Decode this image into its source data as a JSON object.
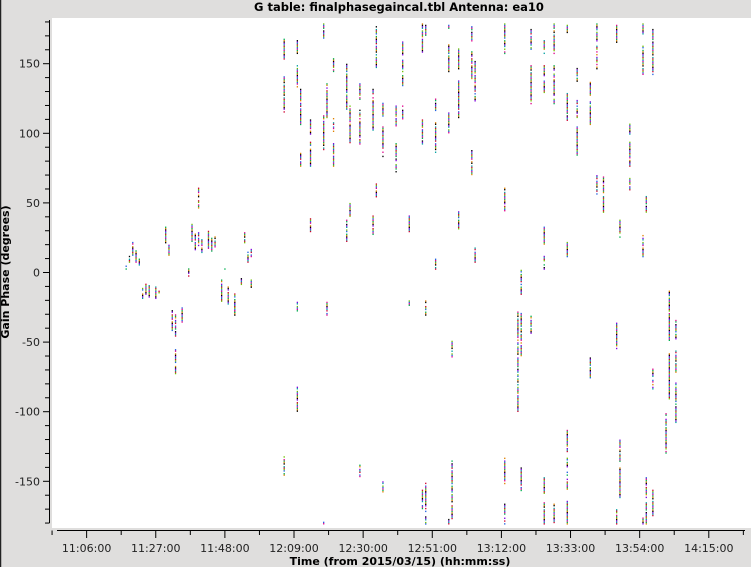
{
  "chart_data": {
    "type": "scatter",
    "title": "G table: finalphasegaincal.tbl   Antenna: ea10",
    "xlabel": "Time (from 2015/03/15) (hh:mm:ss)",
    "ylabel": "Gain Phase (degrees)",
    "xlim": [
      "10:57",
      "14:26"
    ],
    "ylim": [
      -181,
      181
    ],
    "x_ticks": [
      "11:06:00",
      "11:27:00",
      "11:48:00",
      "12:09:00",
      "12:30:00",
      "12:51:00",
      "13:12:00",
      "13:33:00",
      "13:54:00",
      "14:15:00"
    ],
    "y_ticks": [
      150,
      100,
      50,
      0,
      -50,
      -100,
      -150
    ],
    "grid": false,
    "point_colors": [
      "#2060e0",
      "#e0008c",
      "#00b050",
      "#e08000",
      "#000000",
      "#8000e0",
      "#00a0a0",
      "#d00030",
      "#70c000"
    ],
    "segments_note_format": [
      "time",
      "phase_top",
      "phase_bottom"
    ],
    "segments": [
      [
        "11:18",
        5,
        3
      ],
      [
        "11:19",
        13,
        8
      ],
      [
        "11:20",
        22,
        12
      ],
      [
        "11:21",
        16,
        8
      ],
      [
        "11:22",
        10,
        5
      ],
      [
        "11:23",
        -11,
        -18
      ],
      [
        "11:24",
        -8,
        -15
      ],
      [
        "11:25",
        -9,
        -17
      ],
      [
        "11:27",
        -10,
        -18
      ],
      [
        "11:28",
        -12,
        -16
      ],
      [
        "11:30",
        33,
        22
      ],
      [
        "11:31",
        20,
        13
      ],
      [
        "11:32",
        -27,
        -41
      ],
      [
        "11:33",
        -30,
        -45
      ],
      [
        "11:33",
        -54,
        -72
      ],
      [
        "11:35",
        -25,
        -35
      ],
      [
        "11:37",
        3,
        -2
      ],
      [
        "11:38",
        35,
        23
      ],
      [
        "11:39",
        28,
        16
      ],
      [
        "11:40",
        61,
        47
      ],
      [
        "11:40",
        30,
        20
      ],
      [
        "11:41",
        24,
        15
      ],
      [
        "11:43",
        30,
        18
      ],
      [
        "11:44",
        25,
        16
      ],
      [
        "11:45",
        26,
        19
      ],
      [
        "11:47",
        -5,
        -20
      ],
      [
        "11:48",
        5,
        3
      ],
      [
        "11:49",
        -10,
        -22
      ],
      [
        "11:51",
        -15,
        -30
      ],
      [
        "11:51",
        -22,
        -28
      ],
      [
        "11:53",
        -3,
        -8
      ],
      [
        "11:54",
        30,
        22
      ],
      [
        "11:55",
        15,
        8
      ],
      [
        "11:56",
        -5,
        -10
      ],
      [
        "11:56",
        17,
        12
      ],
      [
        "12:06",
        168,
        154
      ],
      [
        "12:06",
        142,
        116
      ],
      [
        "12:06",
        -132,
        -145
      ],
      [
        "12:10",
        167,
        158
      ],
      [
        "12:10",
        150,
        133
      ],
      [
        "12:10",
        -82,
        -99
      ],
      [
        "12:10",
        -21,
        -28
      ],
      [
        "12:11",
        132,
        107
      ],
      [
        "12:11",
        86,
        77
      ],
      [
        "12:14",
        110,
        99
      ],
      [
        "12:14",
        94,
        77
      ],
      [
        "12:14",
        39,
        30
      ],
      [
        "12:18",
        179,
        169
      ],
      [
        "12:18",
        113,
        88
      ],
      [
        "12:18",
        -179,
        -180
      ],
      [
        "12:19",
        136,
        111
      ],
      [
        "12:19",
        -21,
        -30
      ],
      [
        "12:21",
        154,
        145
      ],
      [
        "12:21",
        111,
        102
      ],
      [
        "12:21",
        94,
        77
      ],
      [
        "12:25",
        150,
        118
      ],
      [
        "12:25",
        38,
        23
      ],
      [
        "12:26",
        120,
        94
      ],
      [
        "12:26",
        50,
        41
      ],
      [
        "12:29",
        136,
        124
      ],
      [
        "12:29",
        117,
        93
      ],
      [
        "12:29",
        -138,
        -148
      ],
      [
        "12:33",
        132,
        103
      ],
      [
        "12:33",
        41,
        28
      ],
      [
        "12:34",
        178,
        148
      ],
      [
        "12:34",
        64,
        55
      ],
      [
        "12:36",
        123,
        113
      ],
      [
        "12:36",
        105,
        84
      ],
      [
        "12:36",
        -150,
        -158
      ],
      [
        "12:40",
        120,
        106
      ],
      [
        "12:40",
        93,
        73
      ],
      [
        "12:42",
        166,
        135
      ],
      [
        "12:42",
        120,
        111
      ],
      [
        "12:44",
        44,
        30
      ],
      [
        "12:44",
        -20,
        -23
      ],
      [
        "12:48",
        179,
        159
      ],
      [
        "12:48",
        111,
        93
      ],
      [
        "12:48",
        -156,
        -169
      ],
      [
        "12:49",
        179,
        171
      ],
      [
        "12:49",
        -20,
        -32
      ],
      [
        "12:49",
        -151,
        -180
      ],
      [
        "12:52",
        125,
        115
      ],
      [
        "12:52",
        108,
        87
      ],
      [
        "12:52",
        12,
        3
      ],
      [
        "12:56",
        179,
        176
      ],
      [
        "12:56",
        164,
        145
      ],
      [
        "12:56",
        115,
        100
      ],
      [
        "12:56",
        -176,
        -180
      ],
      [
        "12:57",
        -49,
        -60
      ],
      [
        "12:57",
        -135,
        -176
      ],
      [
        "12:59",
        161,
        147
      ],
      [
        "12:59",
        138,
        112
      ],
      [
        "12:59",
        44,
        32
      ],
      [
        "13:03",
        177,
        167
      ],
      [
        "13:03",
        159,
        140
      ],
      [
        "13:03",
        88,
        71
      ],
      [
        "13:04",
        152,
        124
      ],
      [
        "13:04",
        18,
        8
      ],
      [
        "13:13",
        179,
        158
      ],
      [
        "13:13",
        61,
        44
      ],
      [
        "13:13",
        -133,
        -151
      ],
      [
        "13:13",
        -166,
        -180
      ],
      [
        "13:17",
        -28,
        -58
      ],
      [
        "13:17",
        -61,
        -99
      ],
      [
        "13:18",
        2,
        -15
      ],
      [
        "13:18",
        -28,
        -59
      ],
      [
        "13:18",
        -140,
        -156
      ],
      [
        "13:21",
        176,
        161
      ],
      [
        "13:21",
        149,
        122
      ],
      [
        "13:21",
        -31,
        -43
      ],
      [
        "13:25",
        167,
        158
      ],
      [
        "13:25",
        149,
        130
      ],
      [
        "13:25",
        33,
        21
      ],
      [
        "13:25",
        13,
        3
      ],
      [
        "13:25",
        -147,
        -158
      ],
      [
        "13:25",
        -164,
        -180
      ],
      [
        "13:28",
        179,
        176
      ],
      [
        "13:28",
        174,
        158
      ],
      [
        "13:28",
        149,
        122
      ],
      [
        "13:28",
        -166,
        -179
      ],
      [
        "13:32",
        178,
        173
      ],
      [
        "13:32",
        130,
        110
      ],
      [
        "13:32",
        22,
        12
      ],
      [
        "13:32",
        -113,
        -128
      ],
      [
        "13:32",
        -133,
        -156
      ],
      [
        "13:32",
        -164,
        -180
      ],
      [
        "13:35",
        147,
        138
      ],
      [
        "13:35",
        124,
        112
      ],
      [
        "13:35",
        105,
        85
      ],
      [
        "13:39",
        137,
        127
      ],
      [
        "13:39",
        123,
        107
      ],
      [
        "13:39",
        -61,
        -76
      ],
      [
        "13:41",
        179,
        167
      ],
      [
        "13:41",
        163,
        147
      ],
      [
        "13:41",
        70,
        57
      ],
      [
        "13:43",
        69,
        44
      ],
      [
        "13:47",
        179,
        166
      ],
      [
        "13:47",
        -36,
        -54
      ],
      [
        "13:47",
        -170,
        -180
      ],
      [
        "13:48",
        38,
        25
      ],
      [
        "13:48",
        -119,
        -135
      ],
      [
        "13:48",
        -140,
        -161
      ],
      [
        "13:51",
        108,
        99
      ],
      [
        "13:51",
        94,
        77
      ],
      [
        "13:51",
        68,
        60
      ],
      [
        "13:55",
        179,
        171
      ],
      [
        "13:55",
        163,
        143
      ],
      [
        "13:55",
        28,
        12
      ],
      [
        "13:55",
        -176,
        -180
      ],
      [
        "13:56",
        55,
        44
      ],
      [
        "13:56",
        -147,
        -161
      ],
      [
        "13:56",
        -165,
        -180
      ],
      [
        "13:58",
        175,
        143
      ],
      [
        "13:58",
        -69,
        -83
      ],
      [
        "13:58",
        -156,
        -174
      ],
      [
        "14:02",
        -99,
        -129
      ],
      [
        "14:03",
        -13,
        -48
      ],
      [
        "14:03",
        -58,
        -90
      ],
      [
        "14:05",
        -33,
        -47
      ],
      [
        "14:05",
        -56,
        -72
      ],
      [
        "14:05",
        -79,
        -107
      ]
    ]
  }
}
